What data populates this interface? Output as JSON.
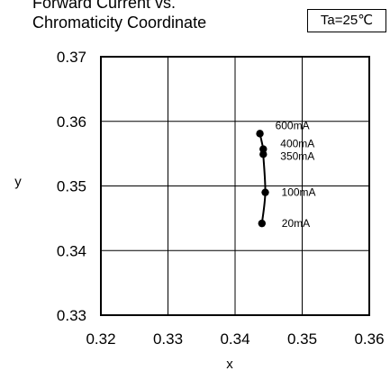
{
  "title_line1": "Forward Current vs.",
  "title_line2": "Chromaticity Coordinate",
  "condition": "Ta=25℃",
  "chart_data": {
    "type": "line",
    "xlabel": "x",
    "ylabel": "y",
    "xlim": [
      0.32,
      0.36
    ],
    "ylim": [
      0.33,
      0.37
    ],
    "x_ticks": [
      "0.32",
      "0.33",
      "0.34",
      "0.35",
      "0.36"
    ],
    "y_ticks": [
      "0.33",
      "0.34",
      "0.35",
      "0.36",
      "0.37"
    ],
    "grid": true,
    "series": [
      {
        "points": [
          {
            "x": 0.344,
            "y": 0.3442,
            "label": "20mA"
          },
          {
            "x": 0.3445,
            "y": 0.349,
            "label": "100mA"
          },
          {
            "x": 0.3442,
            "y": 0.3549,
            "label": "350mA"
          },
          {
            "x": 0.3442,
            "y": 0.3557,
            "label": "400mA"
          },
          {
            "x": 0.3437,
            "y": 0.3581,
            "label": "600mA"
          }
        ]
      }
    ],
    "colors": {
      "line": "#000000",
      "marker": "#000000",
      "grid": "#000000"
    }
  }
}
